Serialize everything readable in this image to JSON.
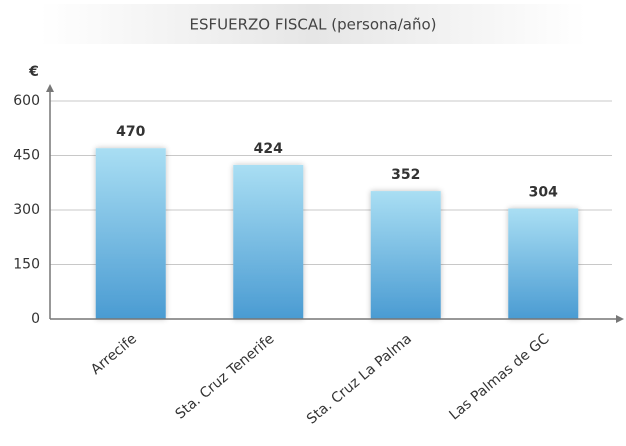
{
  "chart_data": {
    "type": "bar",
    "title": "ESFUERZO FISCAL (persona/año)",
    "y_label": "€",
    "categories": [
      "Arrecife",
      "Sta. Cruz Tenerife",
      "Sta. Cruz La Palma",
      "Las Palmas de GC"
    ],
    "values": [
      470,
      424,
      352,
      304
    ],
    "color": "#5aaad8",
    "ylim": [
      0,
      600
    ],
    "yticks": [
      0,
      150,
      300,
      450,
      600
    ],
    "grid": true
  }
}
